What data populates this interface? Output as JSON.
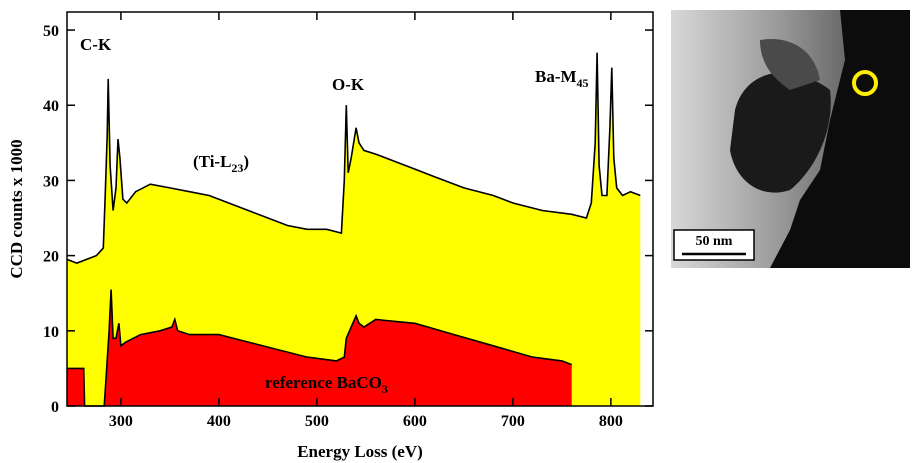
{
  "chart_data": {
    "type": "area",
    "x_label": "Energy Loss (eV)",
    "y_label": "CCD counts x 1000",
    "xlim": [
      245,
      843
    ],
    "ylim": [
      0,
      52.4
    ],
    "xticks": [
      300,
      400,
      500,
      600,
      700,
      800
    ],
    "yticks": [
      0,
      10,
      20,
      30,
      40,
      50
    ],
    "line_color": "#000000",
    "series": [
      {
        "color": "#ffff00",
        "x": [
          245,
          255,
          265,
          275,
          282,
          284,
          286,
          287,
          289,
          292,
          295,
          297,
          299,
          302,
          306,
          315,
          330,
          350,
          370,
          390,
          410,
          430,
          450,
          470,
          490,
          510,
          525,
          528,
          530,
          532,
          535,
          540,
          543,
          548,
          560,
          580,
          600,
          620,
          650,
          680,
          700,
          730,
          760,
          775,
          780,
          784,
          786,
          788,
          791,
          796,
          799,
          801,
          803,
          806,
          812,
          820,
          830
        ],
        "values": [
          19.5,
          19,
          19.5,
          20,
          21,
          28,
          36,
          43.5,
          32,
          26,
          29,
          35.5,
          33,
          27.5,
          27,
          28.5,
          29.5,
          29,
          28.5,
          28,
          27,
          26,
          25,
          24,
          23.5,
          23.5,
          23,
          30,
          40,
          31,
          33,
          37,
          35,
          34,
          33.5,
          32.5,
          31.5,
          30.5,
          29,
          28,
          27,
          26,
          25.5,
          25,
          27,
          35,
          47,
          32,
          28,
          28,
          37,
          45,
          33,
          29,
          28,
          28.5,
          28
        ]
      },
      {
        "color": "#ff0000",
        "x": [
          245,
          262,
          263,
          283,
          285,
          288,
          290,
          292,
          295,
          298,
          300,
          305,
          320,
          340,
          352,
          355,
          358,
          370,
          400,
          430,
          460,
          490,
          520,
          528,
          530,
          535,
          540,
          543,
          548,
          560,
          600,
          640,
          680,
          720,
          750,
          760
        ],
        "values": [
          5,
          5,
          0,
          0,
          4,
          10,
          15.5,
          9,
          9,
          11,
          8,
          8.5,
          9.5,
          10,
          10.5,
          11.5,
          10,
          9.5,
          9.5,
          8.5,
          7.5,
          6.5,
          6,
          6.5,
          9,
          10.5,
          12,
          11,
          10.5,
          11.5,
          11,
          9.5,
          8,
          6.5,
          6,
          5.5
        ]
      }
    ],
    "annotations": [
      {
        "text": "C-K"
      },
      {
        "text": "O-K"
      },
      {
        "text": "Ba-M",
        "sub": "45"
      },
      {
        "text": "(Ti-L",
        "sub": "23",
        "after": ")"
      },
      {
        "text": "reference BaCO",
        "sub": "3"
      }
    ]
  },
  "image": {
    "scale_bar": "50 nm"
  }
}
